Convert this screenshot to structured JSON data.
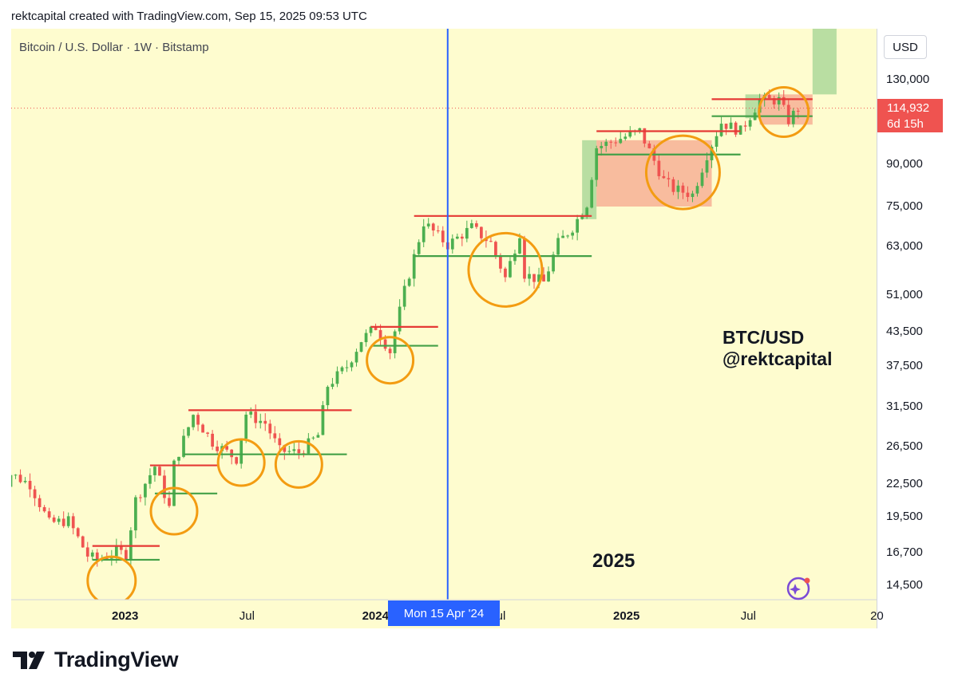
{
  "header": {
    "attribution": "rektcapital created with TradingView.com, Sep 15, 2025 09:53 UTC"
  },
  "chart_data": {
    "type": "candlestick",
    "symbol_label": "Bitcoin / U.S. Dollar · 1W · Bitstamp",
    "currency": "USD",
    "scale": "log",
    "y_ticks": [
      "130,000",
      "90,000",
      "75,000",
      "63,000",
      "51,000",
      "43,500",
      "37,500",
      "31,500",
      "26,500",
      "22,500",
      "19,500",
      "16,700",
      "14,500"
    ],
    "y_tick_values": [
      130000,
      90000,
      75000,
      63000,
      51000,
      43500,
      37500,
      31500,
      26500,
      22500,
      19500,
      16700,
      14500
    ],
    "x_ticks": [
      {
        "label": "2023",
        "bold": true,
        "date": "2023-01-01"
      },
      {
        "label": "Jul",
        "bold": false,
        "date": "2023-07-01"
      },
      {
        "label": "2024",
        "bold": true,
        "date": "2024-01-01"
      },
      {
        "label": "Jul",
        "bold": false,
        "date": "2024-07-01"
      },
      {
        "label": "2025",
        "bold": true,
        "date": "2025-01-01"
      },
      {
        "label": "Jul",
        "bold": false,
        "date": "2025-07-01"
      },
      {
        "label": "20",
        "bold": false,
        "date": "2026-01-01"
      }
    ],
    "current_price": {
      "value": "114,932",
      "countdown": "6d 15h",
      "numeric": 114932
    },
    "crosshair": {
      "label": "Mon 15 Apr '24",
      "date": "2024-04-15"
    },
    "annotations": {
      "pair": "BTC/USD",
      "handle": "@rektcapital",
      "year": "2025"
    },
    "colors": {
      "up": "#4caf50",
      "down": "#ef5350",
      "background": "#fefccf",
      "resistance": "#e53935",
      "support": "#43a047",
      "circle": "#f39c12",
      "crosshair": "#2962ff"
    },
    "resistance_levels": [
      {
        "from": "2022-11-14",
        "to": "2023-02-20",
        "price": 17200
      },
      {
        "from": "2023-02-06",
        "to": "2023-05-15",
        "price": 24400
      },
      {
        "from": "2023-04-03",
        "to": "2023-11-27",
        "price": 31000
      },
      {
        "from": "2023-12-25",
        "to": "2024-04-01",
        "price": 44500
      },
      {
        "from": "2024-02-26",
        "to": "2024-11-11",
        "price": 72000
      },
      {
        "from": "2024-11-18",
        "to": "2025-06-16",
        "price": 104000
      },
      {
        "from": "2025-05-05",
        "to": "2025-09-29",
        "price": 119500
      }
    ],
    "support_levels": [
      {
        "from": "2022-11-14",
        "to": "2023-02-20",
        "price": 16200
      },
      {
        "from": "2023-02-13",
        "to": "2023-05-15",
        "price": 21600
      },
      {
        "from": "2023-03-27",
        "to": "2023-11-20",
        "price": 25600
      },
      {
        "from": "2023-12-25",
        "to": "2024-04-01",
        "price": 41000
      },
      {
        "from": "2024-02-26",
        "to": "2024-11-11",
        "price": 60500
      },
      {
        "from": "2024-11-18",
        "to": "2025-06-16",
        "price": 94000
      },
      {
        "from": "2025-05-05",
        "to": "2025-09-29",
        "price": 111000
      }
    ],
    "retest_circles": [
      {
        "date": "2022-12-12",
        "price": 14800
      },
      {
        "date": "2023-03-13",
        "price": 20000
      },
      {
        "date": "2023-06-19",
        "price": 24700
      },
      {
        "date": "2023-09-11",
        "price": 24500
      },
      {
        "date": "2024-01-22",
        "price": 38500
      },
      {
        "date": "2024-07-08",
        "price": 57000
      },
      {
        "date": "2025-03-24",
        "price": 87000
      },
      {
        "date": "2025-08-18",
        "price": 113000
      }
    ],
    "position_boxes": [
      {
        "from": "2024-10-28",
        "to": "2024-11-18",
        "bottom": 71000,
        "top": 100000,
        "kind": "target"
      },
      {
        "from": "2024-11-18",
        "to": "2025-05-05",
        "bottom": 75000,
        "top": 100000,
        "kind": "stop"
      },
      {
        "from": "2025-06-23",
        "to": "2025-07-14",
        "bottom": 110000,
        "top": 122000,
        "kind": "target"
      },
      {
        "from": "2025-07-14",
        "to": "2025-09-29",
        "bottom": 107000,
        "top": 122000,
        "kind": "stop"
      },
      {
        "from": "2025-09-29",
        "to": "2025-11-03",
        "bottom": 122000,
        "top": 170000,
        "kind": "target"
      }
    ],
    "waypoints": [
      [
        "2022-06-20",
        20500
      ],
      [
        "2022-07-18",
        23500
      ],
      [
        "2022-08-15",
        22500
      ],
      [
        "2022-09-12",
        19000
      ],
      [
        "2022-10-10",
        19200
      ],
      [
        "2022-11-07",
        16500
      ],
      [
        "2022-11-21",
        16200
      ],
      [
        "2022-12-19",
        16800
      ],
      [
        "2023-01-02",
        16600
      ],
      [
        "2023-01-16",
        21000
      ],
      [
        "2023-02-13",
        24300
      ],
      [
        "2023-03-06",
        20300
      ],
      [
        "2023-03-13",
        24500
      ],
      [
        "2023-04-10",
        30400
      ],
      [
        "2023-05-08",
        27000
      ],
      [
        "2023-06-12",
        25100
      ],
      [
        "2023-06-26",
        30500
      ],
      [
        "2023-07-24",
        29300
      ],
      [
        "2023-08-14",
        26000
      ],
      [
        "2023-09-11",
        25800
      ],
      [
        "2023-10-09",
        27800
      ],
      [
        "2023-10-23",
        34500
      ],
      [
        "2023-11-20",
        37500
      ],
      [
        "2023-12-11",
        42000
      ],
      [
        "2024-01-01",
        44500
      ],
      [
        "2024-01-22",
        40000
      ],
      [
        "2024-02-12",
        52000
      ],
      [
        "2024-03-11",
        70000
      ],
      [
        "2024-04-15",
        63500
      ],
      [
        "2024-05-20",
        68500
      ],
      [
        "2024-06-17",
        64000
      ],
      [
        "2024-07-08",
        55000
      ],
      [
        "2024-07-29",
        67000
      ],
      [
        "2024-08-05",
        56000
      ],
      [
        "2024-09-02",
        54000
      ],
      [
        "2024-09-23",
        64000
      ],
      [
        "2024-10-14",
        68500
      ],
      [
        "2024-11-04",
        76000
      ],
      [
        "2024-11-18",
        97000
      ],
      [
        "2024-12-16",
        100000
      ],
      [
        "2025-01-20",
        104000
      ],
      [
        "2025-02-24",
        84000
      ],
      [
        "2025-03-10",
        81000
      ],
      [
        "2025-04-07",
        79000
      ],
      [
        "2025-04-28",
        94000
      ],
      [
        "2025-05-19",
        108000
      ],
      [
        "2025-06-16",
        104000
      ],
      [
        "2025-07-14",
        119000
      ],
      [
        "2025-08-11",
        119000
      ],
      [
        "2025-08-25",
        109000
      ],
      [
        "2025-09-08",
        115000
      ]
    ]
  },
  "branding": {
    "name": "TradingView"
  }
}
